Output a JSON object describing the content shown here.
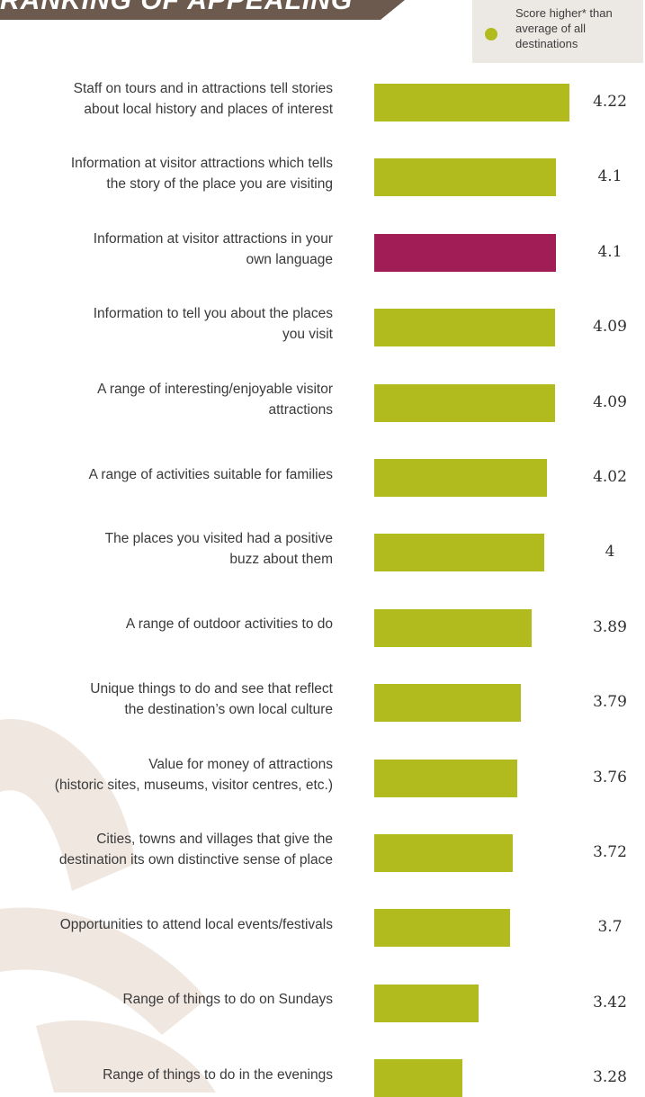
{
  "header": {
    "title": "RANKING OF APPEALING",
    "legend_text": "Score higher* than average of all destinations"
  },
  "colors": {
    "higher": "#b2bb1e",
    "other": "#a01d56",
    "banner": "#6b5a4d",
    "decor": "#efe7e0"
  },
  "chart_data": {
    "type": "bar",
    "orientation": "horizontal",
    "categories": [
      "Staff on tours and in attractions tell stories about local history and places of interest",
      "Information at visitor attractions which tells the story of the place you are visiting",
      "Information at visitor attractions in your own language",
      "Information to tell you about the places you visit",
      "A range of interesting/enjoyable visitor attractions",
      "A range of activities suitable for families",
      "The places you visited had a positive buzz about them",
      "A range of outdoor activities to do",
      "Unique things to do and see that reflect the destination’s own local culture",
      "Value for money of attractions (historic sites, museums, visitor centres, etc.)",
      "Cities, towns and villages that give the destination its own distinctive sense of place",
      "Opportunities to attend local events/festivals",
      "Range of things to do on Sundays",
      "Range of things to do in the evenings"
    ],
    "label_lines": [
      [
        "Staff on tours and in attractions tell stories",
        "about local history and places of interest"
      ],
      [
        "Information at visitor attractions which tells",
        "the story of the place you are visiting"
      ],
      [
        "Information at visitor attractions in your",
        "own language"
      ],
      [
        "Information to tell you about the places",
        "you visit"
      ],
      [
        "A range of interesting/enjoyable visitor",
        "attractions"
      ],
      [
        "A range of activities suitable for families"
      ],
      [
        "The places you visited had a positive",
        "buzz about them"
      ],
      [
        "A range of outdoor activities to do"
      ],
      [
        "Unique things to do and see that reflect",
        "the destination’s own local culture"
      ],
      [
        "Value for money of attractions",
        "(historic sites, museums, visitor centres, etc.)"
      ],
      [
        "Cities, towns and villages that give the",
        "destination its own distinctive sense of place"
      ],
      [
        "Opportunities to attend local events/festivals"
      ],
      [
        "Range of things to do on Sundays"
      ],
      [
        "Range of things to do in the evenings"
      ]
    ],
    "values": [
      4.22,
      4.1,
      4.1,
      4.09,
      4.09,
      4.02,
      4,
      3.89,
      3.79,
      3.76,
      3.72,
      3.7,
      3.42,
      3.28
    ],
    "value_labels": [
      "4.22",
      "4.1",
      "4.1",
      "4.09",
      "4.09",
      "4.02",
      "4",
      "3.89",
      "3.79",
      "3.76",
      "3.72",
      "3.7",
      "3.42",
      "3.28"
    ],
    "higher_than_average": [
      true,
      true,
      false,
      true,
      true,
      true,
      true,
      true,
      true,
      true,
      true,
      true,
      true,
      true
    ],
    "xlim": [
      2.5,
      4.22
    ],
    "legend": "top-right",
    "grid": false
  }
}
